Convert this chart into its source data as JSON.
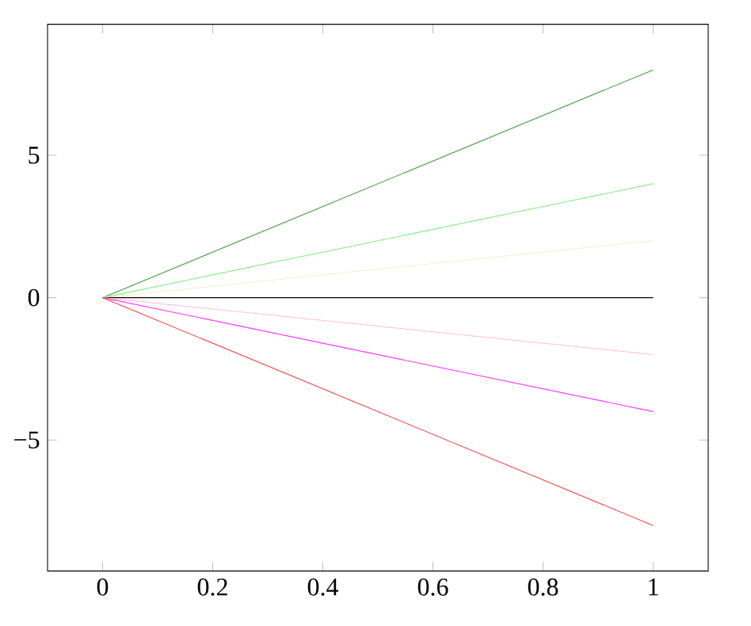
{
  "chart_data": {
    "type": "line",
    "x": [
      0,
      1
    ],
    "series": [
      {
        "color": "#3f9f3f",
        "values": [
          0,
          8
        ]
      },
      {
        "color": "#80ee80",
        "values": [
          0,
          4
        ]
      },
      {
        "color": "#f2f2c8",
        "values": [
          0,
          2
        ]
      },
      {
        "color": "#000000",
        "values": [
          0,
          0
        ]
      },
      {
        "color": "#ffbfcf",
        "values": [
          0,
          -2
        ]
      },
      {
        "color": "#ff33ff",
        "values": [
          0,
          -4
        ]
      },
      {
        "color": "#f04040",
        "values": [
          0,
          -8
        ]
      }
    ],
    "xlim": [
      -0.1,
      1.1
    ],
    "ylim": [
      -9.6,
      9.6
    ],
    "xticks": [
      0,
      {
        "value": 0.2,
        "label": "0.2"
      },
      {
        "value": 0.4,
        "label": "0.4"
      },
      {
        "value": 0.6,
        "label": "0.6"
      },
      {
        "value": 0.8,
        "label": "0.8"
      },
      1
    ],
    "yticks": [
      {
        "value": -5,
        "label": "−5"
      },
      0,
      5
    ],
    "marker": "none",
    "line_style": "solid"
  }
}
